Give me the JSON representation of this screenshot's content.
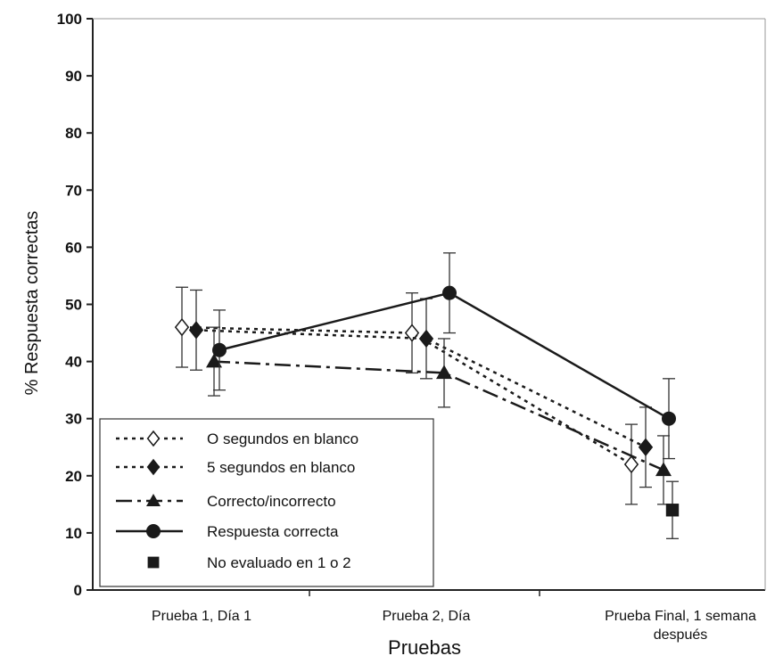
{
  "chart_data": {
    "type": "line",
    "xlabel": "Pruebas",
    "ylabel": "% Respuesta correctas",
    "ylim": [
      0,
      100
    ],
    "yticks": [
      0,
      10,
      20,
      30,
      40,
      50,
      60,
      70,
      80,
      90,
      100
    ],
    "categories": [
      "Prueba 1, Día 1",
      "Prueba 2, Día",
      "Prueba Final, 1 semana después"
    ],
    "grid": false,
    "legend_position": "bottom-left",
    "series": [
      {
        "name": "O segundos en blanco",
        "marker": "diamond-open",
        "line_style": "dotted",
        "values": [
          46,
          45,
          22
        ],
        "errors": [
          7,
          7,
          7
        ]
      },
      {
        "name": "5 segundos en blanco",
        "marker": "diamond",
        "line_style": "dotted",
        "values": [
          45.5,
          44,
          25
        ],
        "errors": [
          7,
          7,
          7
        ]
      },
      {
        "name": "Correcto/incorrecto",
        "marker": "triangle",
        "line_style": "dashdot",
        "values": [
          40,
          38,
          21
        ],
        "errors": [
          6,
          6,
          6
        ]
      },
      {
        "name": "Respuesta correcta",
        "marker": "circle",
        "line_style": "solid",
        "values": [
          42,
          52,
          30
        ],
        "errors": [
          7,
          7,
          7
        ]
      },
      {
        "name": "No evaluado en 1 o 2",
        "marker": "square",
        "line_style": "none",
        "values": [
          null,
          null,
          14
        ],
        "errors": [
          null,
          null,
          5
        ]
      }
    ]
  }
}
